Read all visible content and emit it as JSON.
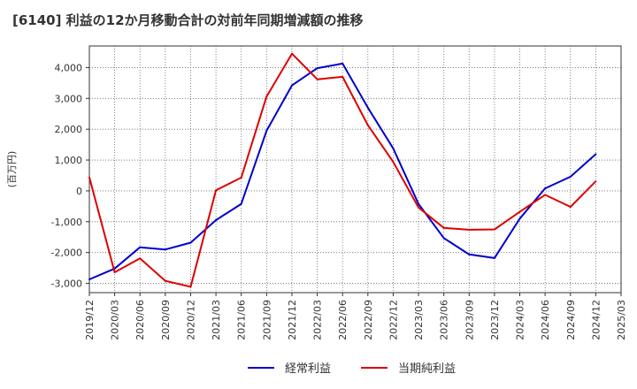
{
  "title": "[6140]  利益の12か月移動合計の対前年同期増減額の推移",
  "chart_data": {
    "type": "line",
    "title": "[6140]  利益の12か月移動合計の対前年同期増減額の推移",
    "ylabel": "(百万円)",
    "xlabel": "",
    "ylim": [
      -3300,
      4700
    ],
    "yticks": [
      -3000,
      -2000,
      -1000,
      0,
      1000,
      2000,
      3000,
      4000
    ],
    "ytick_labels": [
      "-3,000",
      "-2,000",
      "-1,000",
      "0",
      "1,000",
      "2,000",
      "3,000",
      "4,000"
    ],
    "categories": [
      "2019/12",
      "2020/03",
      "2020/06",
      "2020/09",
      "2020/12",
      "2021/03",
      "2021/06",
      "2021/09",
      "2021/12",
      "2022/03",
      "2022/06",
      "2022/09",
      "2022/12",
      "2023/03",
      "2023/06",
      "2023/09",
      "2023/12",
      "2024/03",
      "2024/06",
      "2024/09",
      "2024/12",
      "2025/03"
    ],
    "grid": true,
    "legend_position": "bottom-center",
    "series": [
      {
        "name": "経常利益",
        "color": "#0000cc",
        "values": [
          -2870,
          -2520,
          -1830,
          -1900,
          -1680,
          -950,
          -420,
          1950,
          3420,
          3980,
          4130,
          2700,
          1380,
          -420,
          -1530,
          -2060,
          -2180,
          -900,
          80,
          460,
          1190,
          null
        ]
      },
      {
        "name": "当期純利益",
        "color": "#dd0000",
        "values": [
          440,
          -2640,
          -2190,
          -2920,
          -3110,
          20,
          430,
          3060,
          4450,
          3620,
          3700,
          2130,
          940,
          -540,
          -1200,
          -1260,
          -1250,
          -680,
          -130,
          -520,
          310,
          null
        ]
      }
    ]
  }
}
